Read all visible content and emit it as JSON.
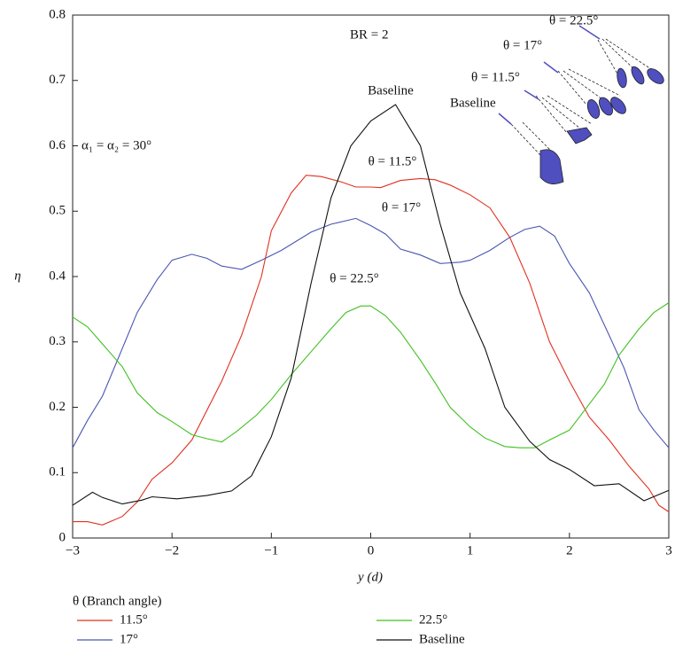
{
  "chart_data": {
    "type": "line",
    "x_label": "y (d)",
    "y_label": "η",
    "xlim": [
      -3,
      3
    ],
    "ylim": [
      0,
      0.8
    ],
    "xticks": [
      {
        "value": -3,
        "label": "−3"
      },
      {
        "value": -2,
        "label": "−2"
      },
      {
        "value": -1,
        "label": "−1"
      },
      0,
      1,
      2,
      3
    ],
    "yticks": [
      0,
      0.1,
      0.2,
      0.3,
      0.4,
      0.5,
      0.6,
      0.7,
      0.8
    ],
    "legend_title": "θ (Branch angle)",
    "annotations": [
      "BR = 2",
      "α₁ = α₂ = 30°",
      "Baseline",
      "θ = 11.5°",
      "θ = 17°",
      "θ = 22.5°"
    ],
    "inset_labels": [
      "θ = 22.5°",
      "θ = 17°",
      "θ = 11.5°",
      "Baseline"
    ],
    "series": [
      {
        "name": "11.5°",
        "color": "#e03020",
        "x": [
          -3,
          -2.85,
          -2.7,
          -2.5,
          -2.35,
          -2.2,
          -2,
          -1.8,
          -1.5,
          -1.3,
          -1.1,
          -1,
          -0.8,
          -0.65,
          -0.5,
          -0.3,
          -0.15,
          0,
          0.1,
          0.3,
          0.5,
          0.65,
          0.8,
          1,
          1.2,
          1.4,
          1.6,
          1.8,
          2,
          2.2,
          2.4,
          2.6,
          2.8,
          2.9,
          3
        ],
        "values": [
          0.025,
          0.025,
          0.02,
          0.033,
          0.055,
          0.09,
          0.115,
          0.15,
          0.24,
          0.31,
          0.4,
          0.47,
          0.528,
          0.555,
          0.553,
          0.545,
          0.537,
          0.537,
          0.536,
          0.547,
          0.55,
          0.548,
          0.54,
          0.525,
          0.505,
          0.46,
          0.39,
          0.3,
          0.24,
          0.185,
          0.15,
          0.11,
          0.075,
          0.05,
          0.04
        ]
      },
      {
        "name": "17°",
        "color": "#4a55b0",
        "x": [
          -3,
          -2.85,
          -2.7,
          -2.5,
          -2.35,
          -2.15,
          -2,
          -1.8,
          -1.65,
          -1.5,
          -1.3,
          -1.1,
          -0.9,
          -0.6,
          -0.4,
          -0.15,
          0,
          0.15,
          0.3,
          0.5,
          0.7,
          0.9,
          1,
          1.2,
          1.4,
          1.55,
          1.7,
          1.85,
          2,
          2.2,
          2.4,
          2.55,
          2.7,
          2.85,
          3
        ],
        "values": [
          0.138,
          0.18,
          0.217,
          0.29,
          0.345,
          0.395,
          0.425,
          0.434,
          0.428,
          0.416,
          0.411,
          0.425,
          0.44,
          0.468,
          0.48,
          0.489,
          0.478,
          0.465,
          0.442,
          0.433,
          0.42,
          0.422,
          0.425,
          0.44,
          0.46,
          0.472,
          0.477,
          0.462,
          0.42,
          0.375,
          0.31,
          0.26,
          0.196,
          0.165,
          0.138
        ]
      },
      {
        "name": "22.5°",
        "color": "#40c020",
        "x": [
          -3,
          -2.85,
          -2.7,
          -2.5,
          -2.35,
          -2.15,
          -2,
          -1.8,
          -1.65,
          -1.5,
          -1.35,
          -1.15,
          -1,
          -0.8,
          -0.6,
          -0.4,
          -0.25,
          -0.1,
          0,
          0.15,
          0.3,
          0.5,
          0.65,
          0.8,
          1,
          1.15,
          1.35,
          1.5,
          1.65,
          1.8,
          2,
          2.15,
          2.35,
          2.5,
          2.7,
          2.85,
          3
        ],
        "values": [
          0.338,
          0.323,
          0.297,
          0.262,
          0.222,
          0.192,
          0.178,
          0.158,
          0.152,
          0.147,
          0.163,
          0.188,
          0.212,
          0.25,
          0.285,
          0.32,
          0.345,
          0.355,
          0.355,
          0.34,
          0.315,
          0.272,
          0.237,
          0.2,
          0.17,
          0.153,
          0.14,
          0.138,
          0.138,
          0.15,
          0.165,
          0.195,
          0.235,
          0.28,
          0.32,
          0.345,
          0.36
        ]
      },
      {
        "name": "Baseline",
        "color": "#111111",
        "x": [
          -3,
          -2.8,
          -2.7,
          -2.5,
          -2.3,
          -2.2,
          -1.95,
          -1.65,
          -1.4,
          -1.2,
          -1,
          -0.8,
          -0.6,
          -0.4,
          -0.2,
          0,
          0.25,
          0.5,
          0.7,
          0.9,
          1.15,
          1.35,
          1.6,
          1.8,
          2,
          2.25,
          2.5,
          2.75,
          3
        ],
        "values": [
          0.05,
          0.07,
          0.062,
          0.052,
          0.058,
          0.063,
          0.06,
          0.065,
          0.072,
          0.095,
          0.155,
          0.245,
          0.39,
          0.52,
          0.6,
          0.638,
          0.663,
          0.6,
          0.48,
          0.375,
          0.29,
          0.2,
          0.148,
          0.12,
          0.105,
          0.08,
          0.083,
          0.057,
          0.073
        ]
      }
    ]
  }
}
